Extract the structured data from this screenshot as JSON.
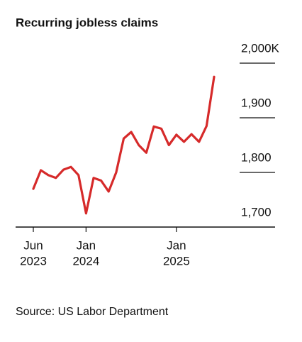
{
  "chart_data": {
    "type": "line",
    "title": "Recurring jobless claims",
    "source": "Source: US Labor Department",
    "x": [
      "2023-06",
      "2023-07",
      "2023-08",
      "2023-09",
      "2023-10",
      "2023-11",
      "2023-12",
      "2024-01",
      "2024-02",
      "2024-03",
      "2024-04",
      "2024-05",
      "2024-06",
      "2024-07",
      "2024-08",
      "2024-09",
      "2024-10",
      "2024-11",
      "2024-12",
      "2025-01",
      "2025-02",
      "2025-03",
      "2025-04",
      "2025-05",
      "2025-06"
    ],
    "series": [
      {
        "name": "Recurring jobless claims",
        "color": "#d62a2a",
        "values": [
          1770,
          1804,
          1795,
          1790,
          1805,
          1810,
          1795,
          1725,
          1790,
          1785,
          1765,
          1800,
          1862,
          1874,
          1850,
          1836,
          1884,
          1880,
          1850,
          1869,
          1856,
          1870,
          1856,
          1885,
          1975
        ]
      }
    ],
    "xlim": [
      "2023-06",
      "2025-06"
    ],
    "xticks": [
      {
        "value": "2023-06",
        "label": [
          "Jun",
          "2023"
        ]
      },
      {
        "value": "2024-01",
        "label": [
          "Jan",
          "2024"
        ]
      },
      {
        "value": "2025-01",
        "label": [
          "Jan",
          "2025"
        ]
      }
    ],
    "ylim": [
      1700,
      2000
    ],
    "yticks": [
      {
        "value": 1700,
        "label": "1,700"
      },
      {
        "value": 1800,
        "label": "1,800"
      },
      {
        "value": 1900,
        "label": "1,900"
      },
      {
        "value": 2000,
        "label": "2,000K"
      }
    ],
    "grid": true
  }
}
